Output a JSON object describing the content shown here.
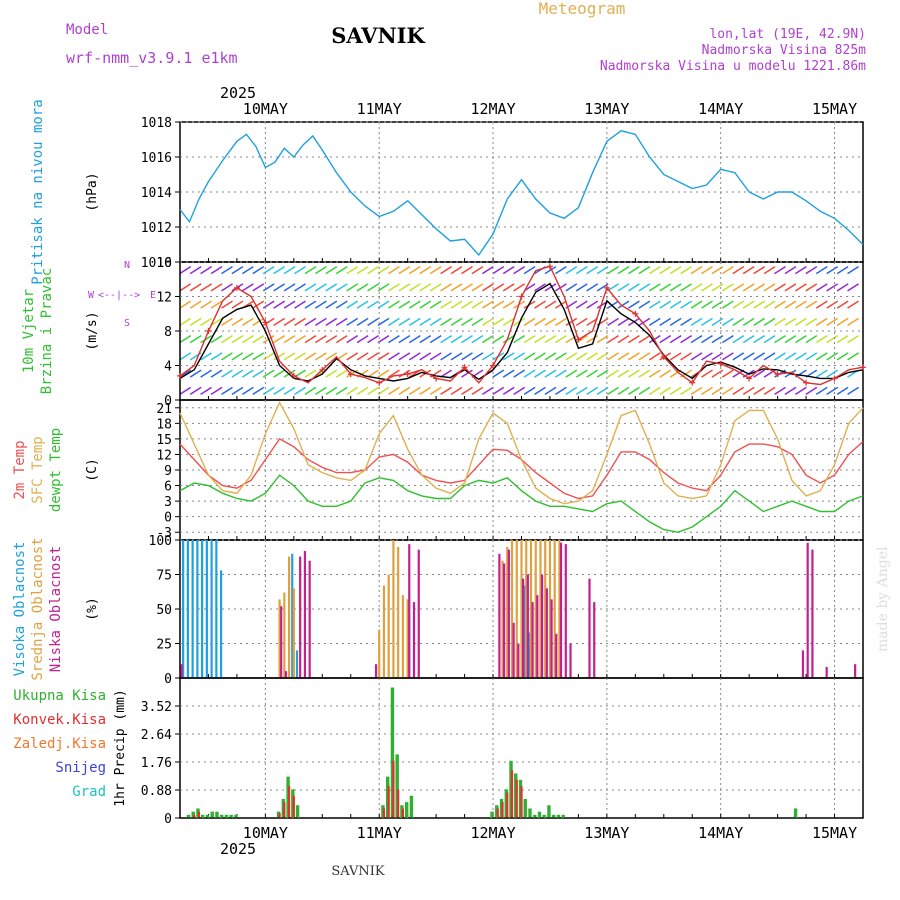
{
  "header": {
    "model_label": "Model",
    "model_name": "wrf-nmm_v3.9.1 e1km",
    "station": "SAVNIK",
    "meteogram": "Meteogram",
    "lonlat": "lon,lat (19E, 42.9N)",
    "elevation": "Nadmorska Visina 825m",
    "model_elevation": "Nadmorska Visina u modelu 1221.86m",
    "year_top": "2025",
    "year_bottom": "2025",
    "footer_station": "SAVNIK",
    "credit": "made by Angel",
    "colors": {
      "magenta": "#b040d0",
      "gold": "#e0b050",
      "black": "#000000"
    }
  },
  "x_axis": {
    "day_labels": [
      "10MAY",
      "11MAY",
      "12MAY",
      "13MAY",
      "14MAY",
      "15MAY"
    ],
    "range_hours": [
      -6,
      138
    ]
  },
  "chart_data": [
    {
      "type": "line",
      "title": "",
      "ylabel_left": "Pritisak na nivou mora",
      "ylabel_unit": "(hPa)",
      "ylim": [
        1010,
        1018
      ],
      "yticks": [
        1010,
        1012,
        1014,
        1016,
        1018
      ],
      "grid": true,
      "series": [
        {
          "name": "",
          "color": "#1fa0e0",
          "x": [
            -6,
            -4,
            -2,
            0,
            3,
            6,
            8,
            10,
            12,
            14,
            16,
            18,
            20,
            22,
            24,
            27,
            30,
            33,
            36,
            39,
            42,
            45,
            48,
            51,
            54,
            57,
            60,
            63,
            66,
            69,
            72,
            75,
            78,
            81,
            84,
            87,
            90,
            93,
            96,
            99,
            102,
            105,
            108,
            111,
            114,
            117,
            120,
            123,
            126,
            129,
            132,
            135,
            138
          ],
          "values": [
            1013.0,
            1012.3,
            1013.6,
            1014.6,
            1015.8,
            1016.9,
            1017.3,
            1016.6,
            1015.4,
            1015.7,
            1016.5,
            1016.0,
            1016.7,
            1017.2,
            1016.4,
            1015.1,
            1014.0,
            1013.2,
            1012.6,
            1012.9,
            1013.5,
            1012.7,
            1011.9,
            1011.2,
            1011.3,
            1010.4,
            1011.6,
            1013.6,
            1014.7,
            1013.6,
            1012.8,
            1012.5,
            1013.1,
            1015.1,
            1016.9,
            1017.5,
            1017.3,
            1016.0,
            1015.0,
            1014.6,
            1014.2,
            1014.4,
            1015.3,
            1015.1,
            1014.0,
            1013.6,
            1014.0,
            1014.0,
            1013.5,
            1012.9,
            1012.5,
            1011.8,
            1011.0
          ]
        }
      ]
    },
    {
      "type": "line",
      "title": "",
      "ylabel_left": [
        "10m Vjetar",
        "Brzina i Pravac"
      ],
      "ylabel_unit": "(m/s)",
      "direction_legend": [
        "W",
        "<--|-->",
        "E",
        "N",
        "S"
      ],
      "ylim": [
        0,
        16
      ],
      "yticks": [
        0,
        4,
        8,
        12,
        16
      ],
      "grid": true,
      "series": [
        {
          "name": "",
          "color": "#000000",
          "x": [
            -6,
            -3,
            0,
            3,
            6,
            9,
            12,
            15,
            18,
            21,
            24,
            27,
            30,
            33,
            36,
            39,
            42,
            45,
            48,
            51,
            54,
            57,
            60,
            63,
            66,
            69,
            72,
            75,
            78,
            81,
            84,
            87,
            90,
            93,
            96,
            99,
            102,
            105,
            108,
            111,
            114,
            117,
            120,
            123,
            126,
            129,
            132,
            135,
            138
          ],
          "values": [
            2.5,
            3.5,
            6.5,
            9.5,
            10.5,
            11,
            8,
            4,
            2.5,
            2.2,
            3,
            4.8,
            3.5,
            2.8,
            2.5,
            2.2,
            2.5,
            3.2,
            2.8,
            2.6,
            3.5,
            2.4,
            3.5,
            5.5,
            9.5,
            12.5,
            13.5,
            10.5,
            6,
            6.5,
            11.5,
            10,
            9,
            7.5,
            5.2,
            3.5,
            2.5,
            4,
            4.4,
            3.8,
            3,
            3.6,
            3.5,
            3,
            2.8,
            2.5,
            2.5,
            3.2,
            3.5
          ]
        },
        {
          "name": "",
          "color": "#e03030",
          "x": [
            -6,
            -3,
            0,
            3,
            6,
            9,
            12,
            15,
            18,
            21,
            24,
            27,
            30,
            33,
            36,
            39,
            42,
            45,
            48,
            51,
            54,
            57,
            60,
            63,
            66,
            69,
            72,
            75,
            78,
            81,
            84,
            87,
            90,
            93,
            96,
            99,
            102,
            105,
            108,
            111,
            114,
            117,
            120,
            123,
            126,
            129,
            132,
            135,
            138
          ],
          "values": [
            2.8,
            4,
            8,
            11.5,
            13,
            12,
            9,
            4.5,
            2.8,
            2,
            3.5,
            5,
            3,
            2.6,
            2,
            2.8,
            3,
            3.5,
            2.5,
            2.2,
            3.8,
            2,
            4,
            7,
            12,
            15,
            15.5,
            12,
            7,
            8,
            13,
            11,
            10,
            8,
            5,
            3.2,
            2,
            4.5,
            4.2,
            3.5,
            2.5,
            4,
            3,
            3.2,
            2,
            1.8,
            2.5,
            3.5,
            3.8
          ]
        }
      ],
      "wind_barb_colors": [
        "#9020d0",
        "#2060e0",
        "#20c0e0",
        "#30d030",
        "#c0e020",
        "#f0a020",
        "#f04030"
      ]
    },
    {
      "type": "line",
      "title": "",
      "ylabel_left": [
        "2m Temp",
        "SFC Temp",
        "dewpt Temp"
      ],
      "ylabel_unit": "(C)",
      "ylim": [
        -4.5,
        22.5
      ],
      "yticks": [
        -3,
        0,
        3,
        6,
        9,
        12,
        15,
        18,
        21
      ],
      "grid": true,
      "series": [
        {
          "name": "2m Temp",
          "color": "#f05050",
          "x": [
            -6,
            -3,
            0,
            3,
            6,
            9,
            12,
            15,
            18,
            21,
            24,
            27,
            30,
            33,
            36,
            39,
            42,
            45,
            48,
            51,
            54,
            57,
            60,
            63,
            66,
            69,
            72,
            75,
            78,
            81,
            84,
            87,
            90,
            93,
            96,
            99,
            102,
            105,
            108,
            111,
            114,
            117,
            120,
            123,
            126,
            129,
            132,
            135,
            138
          ],
          "values": [
            14,
            11,
            8,
            6,
            5.5,
            7,
            11,
            15,
            13.5,
            11,
            9.5,
            8.5,
            8.5,
            9,
            11.5,
            12,
            10.5,
            8,
            7,
            6.5,
            7,
            10,
            13,
            12.8,
            11,
            8.5,
            6.5,
            4.5,
            3.5,
            4,
            8,
            12.5,
            12.5,
            11,
            8.5,
            6.5,
            5.5,
            5,
            8,
            12.5,
            14,
            14,
            13.5,
            12,
            8,
            6.5,
            8,
            12,
            14.5
          ]
        },
        {
          "name": "SFC Temp",
          "color": "#e0b050",
          "x": [
            -6,
            -3,
            0,
            3,
            6,
            9,
            12,
            15,
            18,
            21,
            24,
            27,
            30,
            33,
            36,
            39,
            42,
            45,
            48,
            51,
            54,
            57,
            60,
            63,
            66,
            69,
            72,
            75,
            78,
            81,
            84,
            87,
            90,
            93,
            96,
            99,
            102,
            105,
            108,
            111,
            114,
            117,
            120,
            123,
            126,
            129,
            132,
            135,
            138
          ],
          "values": [
            20,
            14,
            8,
            5,
            4.5,
            8,
            16,
            22,
            17,
            10,
            8.5,
            7.5,
            7,
            9,
            16,
            19.5,
            13,
            8,
            5.5,
            4.5,
            6.5,
            15,
            20,
            18,
            11,
            5.5,
            3.5,
            2.5,
            3,
            5,
            12,
            19.5,
            20.5,
            14,
            6.5,
            4,
            3.5,
            4,
            10,
            18.5,
            20.5,
            20.5,
            15,
            7,
            4,
            5,
            10,
            18,
            21
          ]
        },
        {
          "name": "dewpt Temp",
          "color": "#30c030",
          "x": [
            -6,
            -3,
            0,
            3,
            6,
            9,
            12,
            15,
            18,
            21,
            24,
            27,
            30,
            33,
            36,
            39,
            42,
            45,
            48,
            51,
            54,
            57,
            60,
            63,
            66,
            69,
            72,
            75,
            78,
            81,
            84,
            87,
            90,
            93,
            96,
            99,
            102,
            105,
            108,
            111,
            114,
            117,
            120,
            123,
            126,
            129,
            132,
            135,
            138
          ],
          "values": [
            5,
            6.5,
            6,
            4.5,
            3.5,
            3,
            4.5,
            8,
            6,
            3,
            2,
            2,
            3,
            6.5,
            7.5,
            7,
            5,
            4,
            3.5,
            3.5,
            6,
            7,
            6.5,
            7.5,
            5,
            3,
            2,
            2,
            1.5,
            1,
            2.5,
            3,
            1,
            -1,
            -2.5,
            -3,
            -2,
            0,
            2,
            5,
            3,
            1,
            2,
            3,
            2,
            1,
            1,
            3,
            4
          ]
        }
      ]
    },
    {
      "type": "bar",
      "title": "",
      "ylabel_left": [
        "Visoka Oblacnost",
        "Srednja Oblacnost",
        "Niska Oblacnost"
      ],
      "ylabel_unit": "(%)",
      "ylim": [
        0,
        100
      ],
      "yticks": [
        0,
        25,
        50,
        75,
        100
      ],
      "grid": true,
      "series": [
        {
          "name": "Visoka Oblacnost",
          "color": "#20a0e0",
          "x": [
            -5,
            -4,
            -3,
            -2,
            -1,
            0,
            1,
            2,
            3,
            18,
            19,
            67,
            68
          ],
          "values": [
            100,
            100,
            100,
            100,
            100,
            100,
            100,
            100,
            78,
            90,
            20,
            67,
            33
          ]
        },
        {
          "name": "Srednja Oblacnost",
          "color": "#e0a040",
          "x": [
            15,
            16,
            17,
            18,
            36,
            37,
            38,
            39,
            40,
            41,
            42,
            62,
            63,
            64,
            65,
            66,
            67,
            68,
            69,
            70,
            71,
            72,
            73,
            74
          ],
          "values": [
            57,
            62,
            88,
            65,
            35,
            67,
            75,
            100,
            95,
            60,
            57,
            85,
            95,
            100,
            100,
            100,
            100,
            100,
            100,
            100,
            100,
            100,
            100,
            100
          ]
        },
        {
          "name": "Niska Oblacnost",
          "color": "#c02090",
          "x": [
            -6,
            15,
            16,
            19,
            20,
            21,
            35,
            42,
            43,
            44,
            61,
            62,
            63,
            64,
            65,
            66,
            67,
            68,
            69,
            70,
            71,
            72,
            73,
            74,
            75,
            76,
            80,
            81,
            125,
            126,
            127,
            130,
            136
          ],
          "values": [
            10,
            52,
            5,
            88,
            92,
            85,
            10,
            97,
            55,
            93,
            90,
            83,
            93,
            40,
            25,
            72,
            75,
            55,
            60,
            75,
            65,
            57,
            32,
            98,
            97,
            25,
            72,
            55,
            20,
            98,
            93,
            8,
            10
          ]
        }
      ]
    },
    {
      "type": "bar",
      "title": "",
      "ylabel_left": [
        "Ukupna Kisa",
        "Konvek.Kisa",
        "Zaledj.Kisa",
        "Snijeg",
        "Grad"
      ],
      "ylabel_unit": "1hr Precip (mm)",
      "ylim": [
        0,
        4.4
      ],
      "yticks": [
        0,
        0.88,
        1.76,
        2.64,
        3.52
      ],
      "grid": true,
      "series": [
        {
          "name": "Ukupna Kisa",
          "color": "#30b030",
          "x": [
            -4,
            -3,
            -2,
            -1,
            0,
            1,
            2,
            3,
            4,
            5,
            6,
            15,
            16,
            17,
            18,
            19,
            37,
            38,
            39,
            40,
            41,
            42,
            43,
            60,
            61,
            62,
            63,
            64,
            65,
            66,
            67,
            68,
            69,
            70,
            71,
            72,
            73,
            74,
            75,
            124
          ],
          "values": [
            0.1,
            0.2,
            0.3,
            0.1,
            0.1,
            0.2,
            0.2,
            0.1,
            0.1,
            0.1,
            0.1,
            0.2,
            0.6,
            1.3,
            0.9,
            0.4,
            0.4,
            1.3,
            4.1,
            2.0,
            0.4,
            0.5,
            0.7,
            0.2,
            0.4,
            0.6,
            0.9,
            1.8,
            1.4,
            1.2,
            0.6,
            0.3,
            0.1,
            0.2,
            0.1,
            0.4,
            0.1,
            0.1,
            0.1,
            0.3
          ]
        },
        {
          "name": "Konvek.Kisa",
          "color": "#e03030",
          "x": [
            -3,
            -2,
            15,
            16,
            17,
            18,
            37,
            38,
            39,
            40,
            41,
            61,
            62,
            63,
            64,
            65,
            66
          ],
          "values": [
            0.1,
            0.2,
            0.15,
            0.5,
            1.0,
            0.7,
            0.3,
            1.0,
            1.8,
            0.9,
            0.3,
            0.3,
            0.5,
            0.8,
            1.5,
            1.2,
            1.0
          ]
        },
        {
          "name": "Zaledj.Kisa",
          "color": "#f07830",
          "x": [],
          "values": []
        },
        {
          "name": "Snijeg",
          "color": "#4040e0",
          "x": [],
          "values": []
        },
        {
          "name": "Grad",
          "color": "#20c0c0",
          "x": [],
          "values": []
        }
      ]
    }
  ]
}
